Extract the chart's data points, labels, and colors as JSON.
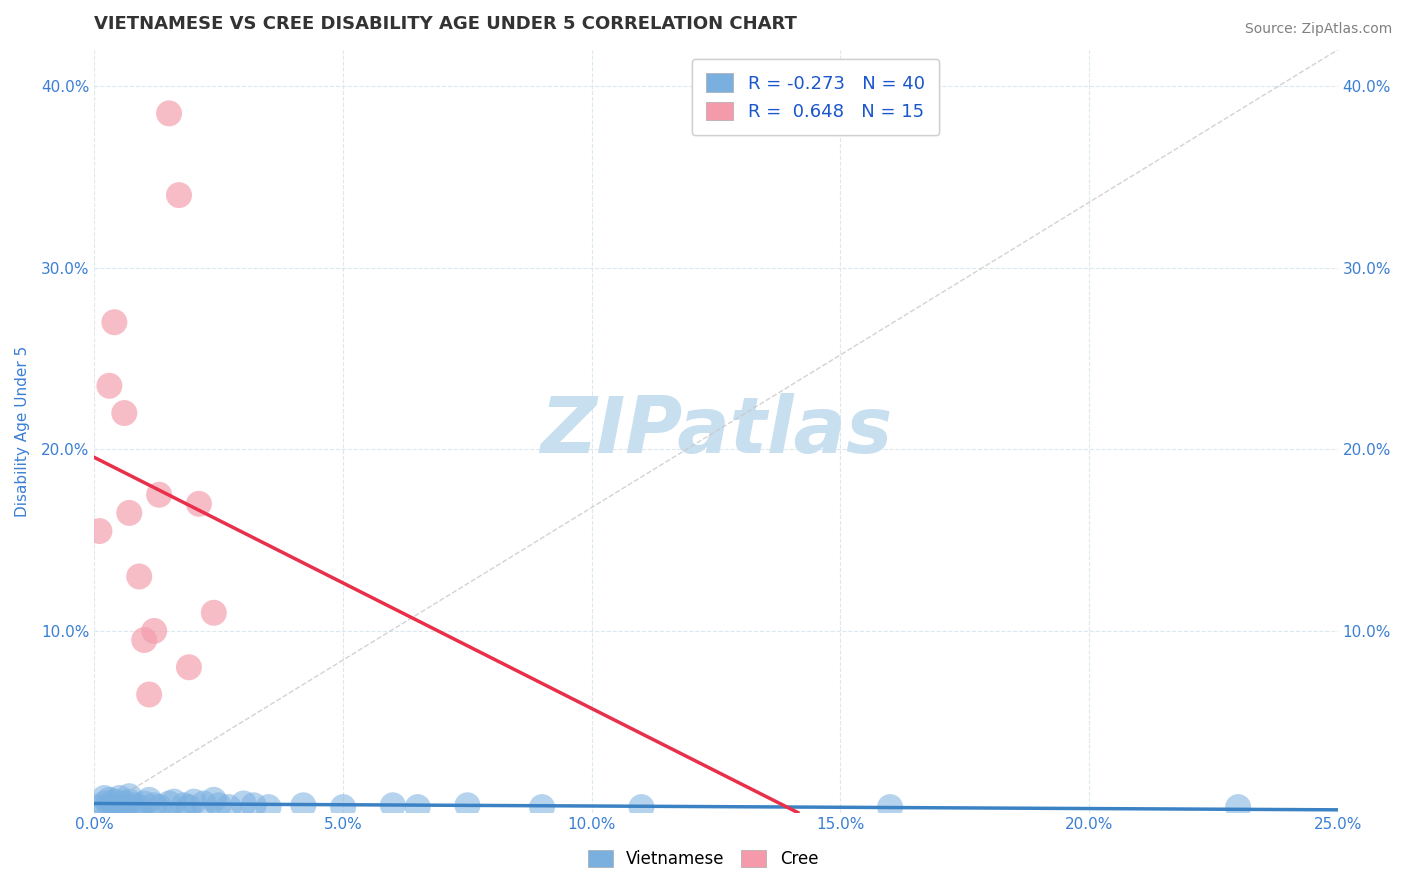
{
  "title": "VIETNAMESE VS CREE DISABILITY AGE UNDER 5 CORRELATION CHART",
  "source": "Source: ZipAtlas.com",
  "ylabel": "Disability Age Under 5",
  "xlim": [
    0.0,
    0.25
  ],
  "ylim": [
    0.0,
    0.42
  ],
  "xticks": [
    0.0,
    0.05,
    0.1,
    0.15,
    0.2,
    0.25
  ],
  "yticks": [
    0.0,
    0.1,
    0.2,
    0.3,
    0.4
  ],
  "xtick_labels": [
    "0.0%",
    "5.0%",
    "10.0%",
    "15.0%",
    "20.0%",
    "25.0%"
  ],
  "ytick_labels_left": [
    "",
    "10.0%",
    "20.0%",
    "30.0%",
    "40.0%"
  ],
  "ytick_labels_right": [
    "",
    "10.0%",
    "20.0%",
    "30.0%",
    "40.0%"
  ],
  "legend_bottom": [
    "Vietnamese",
    "Cree"
  ],
  "legend_top_entries": [
    {
      "label": "R = -0.273   N = 40",
      "color": "#aac4e8"
    },
    {
      "label": "R =  0.648   N = 15",
      "color": "#f4a7b9"
    }
  ],
  "viet_color": "#7ab0e0",
  "cree_color": "#f49aaa",
  "viet_line_color": "#3b82c4",
  "cree_line_color": "#e8304a",
  "ref_line_color": "#c8c8c8",
  "background_color": "#ffffff",
  "grid_color": "#dce8f0",
  "watermark": "ZIPatlas",
  "watermark_color": "#c8dff0",
  "title_color": "#333333",
  "title_fontsize": 13,
  "tick_label_color": "#3b7fd4",
  "viet_points": [
    [
      0.001,
      0.003
    ],
    [
      0.002,
      0.005
    ],
    [
      0.002,
      0.008
    ],
    [
      0.003,
      0.004
    ],
    [
      0.003,
      0.007
    ],
    [
      0.004,
      0.003
    ],
    [
      0.004,
      0.006
    ],
    [
      0.005,
      0.004
    ],
    [
      0.005,
      0.008
    ],
    [
      0.006,
      0.005
    ],
    [
      0.006,
      0.003
    ],
    [
      0.007,
      0.006
    ],
    [
      0.007,
      0.009
    ],
    [
      0.008,
      0.004
    ],
    [
      0.009,
      0.003
    ],
    [
      0.01,
      0.005
    ],
    [
      0.011,
      0.007
    ],
    [
      0.012,
      0.004
    ],
    [
      0.013,
      0.003
    ],
    [
      0.015,
      0.005
    ],
    [
      0.016,
      0.006
    ],
    [
      0.018,
      0.004
    ],
    [
      0.019,
      0.003
    ],
    [
      0.02,
      0.006
    ],
    [
      0.022,
      0.005
    ],
    [
      0.024,
      0.007
    ],
    [
      0.025,
      0.004
    ],
    [
      0.027,
      0.003
    ],
    [
      0.03,
      0.005
    ],
    [
      0.032,
      0.004
    ],
    [
      0.035,
      0.003
    ],
    [
      0.042,
      0.004
    ],
    [
      0.05,
      0.003
    ],
    [
      0.06,
      0.004
    ],
    [
      0.065,
      0.003
    ],
    [
      0.075,
      0.004
    ],
    [
      0.09,
      0.003
    ],
    [
      0.11,
      0.003
    ],
    [
      0.16,
      0.003
    ],
    [
      0.23,
      0.003
    ]
  ],
  "cree_points": [
    [
      0.001,
      0.155
    ],
    [
      0.003,
      0.235
    ],
    [
      0.004,
      0.27
    ],
    [
      0.006,
      0.22
    ],
    [
      0.007,
      0.165
    ],
    [
      0.009,
      0.13
    ],
    [
      0.01,
      0.095
    ],
    [
      0.011,
      0.065
    ],
    [
      0.012,
      0.1
    ],
    [
      0.013,
      0.175
    ],
    [
      0.015,
      0.385
    ],
    [
      0.017,
      0.34
    ],
    [
      0.019,
      0.08
    ],
    [
      0.021,
      0.17
    ],
    [
      0.024,
      0.11
    ]
  ]
}
